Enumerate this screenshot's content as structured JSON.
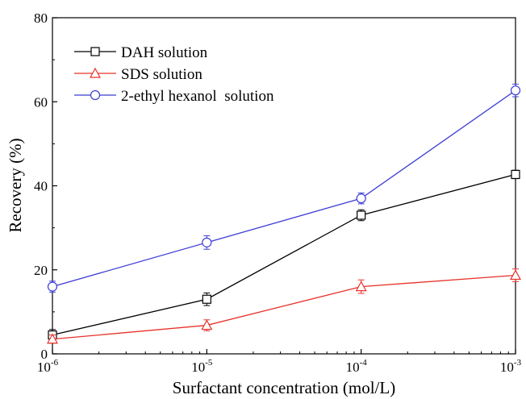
{
  "chart_data": {
    "type": "line",
    "x_scale": "log",
    "x": [
      1e-06,
      1e-05,
      0.0001,
      0.001
    ],
    "x_tick_labels": [
      {
        "base": "10",
        "exp": "-6"
      },
      {
        "base": "10",
        "exp": "-5"
      },
      {
        "base": "10",
        "exp": "-4"
      },
      {
        "base": "10",
        "exp": "-3"
      }
    ],
    "xlabel": "Surfactant concentration (mol/L)",
    "ylabel": "Recovery (%)",
    "ylim": [
      0,
      80
    ],
    "y_ticks": [
      0,
      20,
      40,
      60,
      80
    ],
    "grid": false,
    "legend_position": "top-left",
    "series": [
      {
        "name": "DAH solution",
        "marker": "square",
        "color": "#000000",
        "values": [
          4.5,
          13,
          33,
          42.7
        ],
        "errors": [
          1.3,
          1.5,
          1.3,
          1.0
        ]
      },
      {
        "name": "SDS solution",
        "marker": "triangle",
        "color": "#e8322a",
        "values": [
          3.5,
          6.8,
          16,
          18.7
        ],
        "errors": [
          1.0,
          1.3,
          1.6,
          1.5
        ]
      },
      {
        "name": "2-ethyl hexanol  solution",
        "marker": "circle",
        "color": "#3c3cd4",
        "values": [
          16,
          26.5,
          37,
          62.7
        ],
        "errors": [
          1.3,
          1.6,
          1.3,
          1.5
        ]
      }
    ]
  }
}
